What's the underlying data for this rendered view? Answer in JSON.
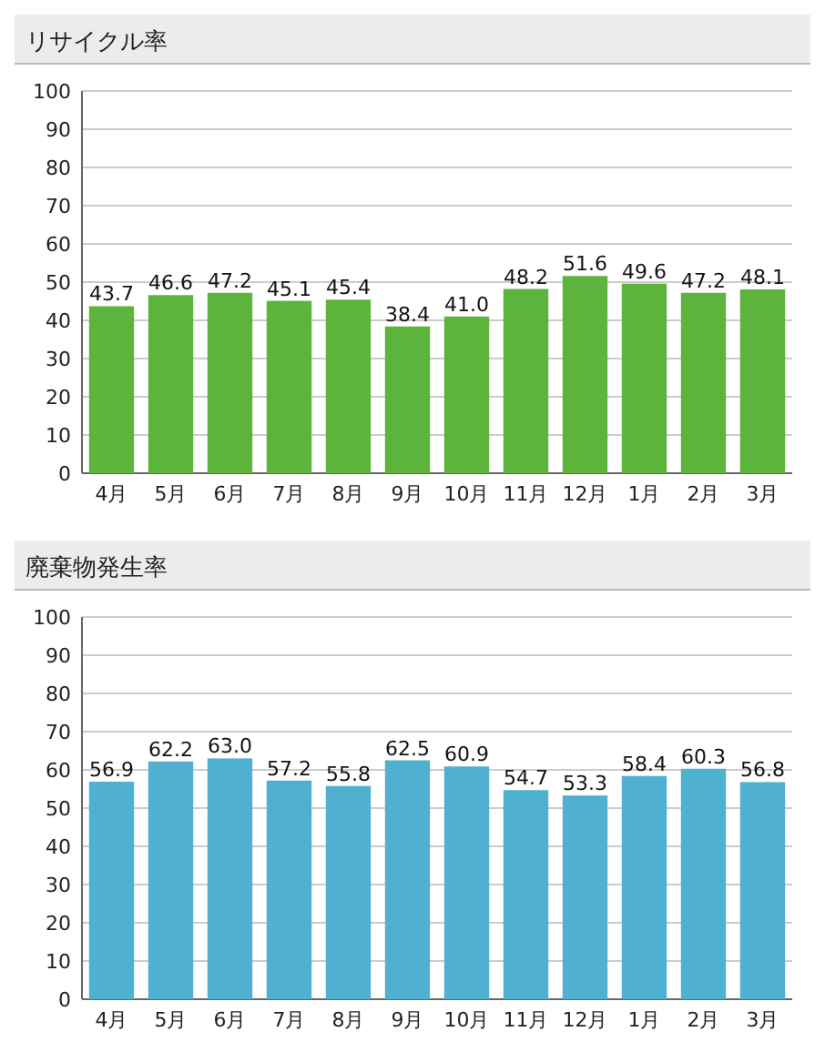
{
  "chart_data": [
    {
      "type": "bar",
      "title": "リサイクル率",
      "categories": [
        "4月",
        "5月",
        "6月",
        "7月",
        "8月",
        "9月",
        "10月",
        "11月",
        "12月",
        "1月",
        "2月",
        "3月"
      ],
      "values": [
        43.7,
        46.6,
        47.2,
        45.1,
        45.4,
        38.4,
        41.0,
        48.2,
        51.6,
        49.6,
        47.2,
        48.1
      ],
      "value_labels": [
        "43.7",
        "46.6",
        "47.2",
        "45.1",
        "45.4",
        "38.4",
        "41.0",
        "48.2",
        "51.6",
        "49.6",
        "47.2",
        "48.1"
      ],
      "color": "#5cb43c",
      "ylim": [
        0,
        100
      ],
      "yticks": [
        0,
        10,
        20,
        30,
        40,
        50,
        60,
        70,
        80,
        90,
        100
      ],
      "grid": "y"
    },
    {
      "type": "bar",
      "title": "廃棄物発生率",
      "categories": [
        "4月",
        "5月",
        "6月",
        "7月",
        "8月",
        "9月",
        "10月",
        "11月",
        "12月",
        "1月",
        "2月",
        "3月"
      ],
      "values": [
        56.9,
        62.2,
        63.0,
        57.2,
        55.8,
        62.5,
        60.9,
        54.7,
        53.3,
        58.4,
        60.3,
        56.8
      ],
      "value_labels": [
        "56.9",
        "62.2",
        "63.0",
        "57.2",
        "55.8",
        "62.5",
        "60.9",
        "54.7",
        "53.3",
        "58.4",
        "60.3",
        "56.8"
      ],
      "color": "#4fb0cf",
      "ylim": [
        0,
        100
      ],
      "yticks": [
        0,
        10,
        20,
        30,
        40,
        50,
        60,
        70,
        80,
        90,
        100
      ],
      "grid": "y"
    }
  ]
}
